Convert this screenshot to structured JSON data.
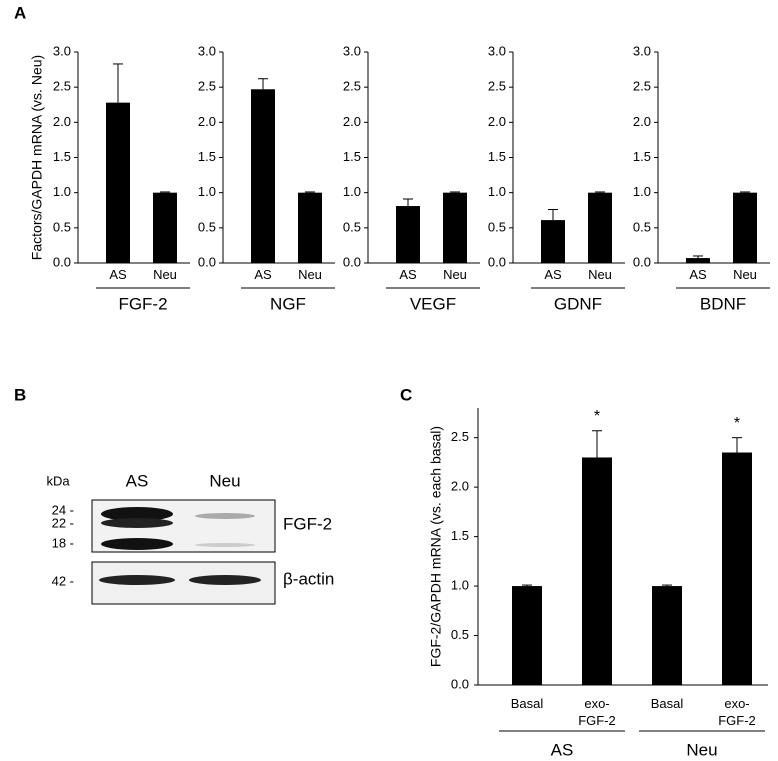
{
  "panel_labels": [
    "A",
    "B",
    "C"
  ],
  "blot": {
    "unit": "kDa",
    "lanes": [
      "AS",
      "Neu"
    ],
    "markers": [
      "24 -",
      "22 -",
      "18 -",
      "42 -"
    ],
    "bands": [
      "FGF-2",
      "β-actin"
    ]
  },
  "chart_data": [
    {
      "type": "bar",
      "title": "FGF-2",
      "y_label": "Factors/GAPDH mRNA (vs. Neu)",
      "categories": [
        "AS",
        "Neu"
      ],
      "values": [
        2.28,
        1.0
      ],
      "errors": [
        0.55,
        0.01
      ],
      "color": "#000000",
      "ylim": [
        0,
        3
      ],
      "yticks": [
        {
          "value": 0,
          "label": "0.0"
        },
        0.5,
        {
          "value": 1,
          "label": "1.0"
        },
        1.5,
        {
          "value": 2,
          "label": "2.0"
        },
        2.5,
        {
          "value": 3,
          "label": "3.0"
        }
      ]
    },
    {
      "type": "bar",
      "title": "NGF",
      "categories": [
        "AS",
        "Neu"
      ],
      "values": [
        2.47,
        1.0
      ],
      "errors": [
        0.15,
        0.01
      ],
      "color": "#000000",
      "ylim": [
        0,
        3
      ],
      "yticks": [
        {
          "value": 0,
          "label": "0.0"
        },
        0.5,
        {
          "value": 1,
          "label": "1.0"
        },
        1.5,
        {
          "value": 2,
          "label": "2.0"
        },
        2.5,
        {
          "value": 3,
          "label": "3.0"
        }
      ]
    },
    {
      "type": "bar",
      "title": "VEGF",
      "categories": [
        "AS",
        "Neu"
      ],
      "values": [
        0.81,
        1.0
      ],
      "errors": [
        0.1,
        0.01
      ],
      "color": "#000000",
      "ylim": [
        0,
        3
      ],
      "yticks": [
        {
          "value": 0,
          "label": "0.0"
        },
        0.5,
        {
          "value": 1,
          "label": "1.0"
        },
        1.5,
        {
          "value": 2,
          "label": "2.0"
        },
        2.5,
        {
          "value": 3,
          "label": "3.0"
        }
      ]
    },
    {
      "type": "bar",
      "title": "GDNF",
      "categories": [
        "AS",
        "Neu"
      ],
      "values": [
        0.61,
        1.0
      ],
      "errors": [
        0.15,
        0.01
      ],
      "color": "#000000",
      "ylim": [
        0,
        3
      ],
      "yticks": [
        {
          "value": 0,
          "label": "0.0"
        },
        0.5,
        {
          "value": 1,
          "label": "1.0"
        },
        1.5,
        {
          "value": 2,
          "label": "2.0"
        },
        2.5,
        {
          "value": 3,
          "label": "3.0"
        }
      ]
    },
    {
      "type": "bar",
      "title": "BDNF",
      "categories": [
        "AS",
        "Neu"
      ],
      "values": [
        0.07,
        1.0
      ],
      "errors": [
        0.03,
        0.01
      ],
      "color": "#000000",
      "ylim": [
        0,
        3
      ],
      "yticks": [
        {
          "value": 0,
          "label": "0.0"
        },
        0.5,
        {
          "value": 1,
          "label": "1.0"
        },
        1.5,
        {
          "value": 2,
          "label": "2.0"
        },
        2.5,
        {
          "value": 3,
          "label": "3.0"
        }
      ]
    },
    {
      "type": "bar",
      "y_label": "FGF-2/GAPDH mRNA (vs. each basal)",
      "categories": [
        "Basal",
        "exo-FGF-2",
        "Basal",
        "exo-FGF-2"
      ],
      "groups": [
        "AS",
        "Neu"
      ],
      "values": [
        1.0,
        2.3,
        1.0,
        2.35
      ],
      "errors": [
        0.01,
        0.27,
        0.01,
        0.15
      ],
      "significance": [
        null,
        "*",
        null,
        "*"
      ],
      "color": "#000000",
      "ylim": [
        0,
        2.8
      ],
      "yticks": [
        {
          "value": 0,
          "label": "0.0"
        },
        0.5,
        {
          "value": 1,
          "label": "1.0"
        },
        1.5,
        {
          "value": 2,
          "label": "2.0"
        },
        2.5
      ]
    }
  ]
}
